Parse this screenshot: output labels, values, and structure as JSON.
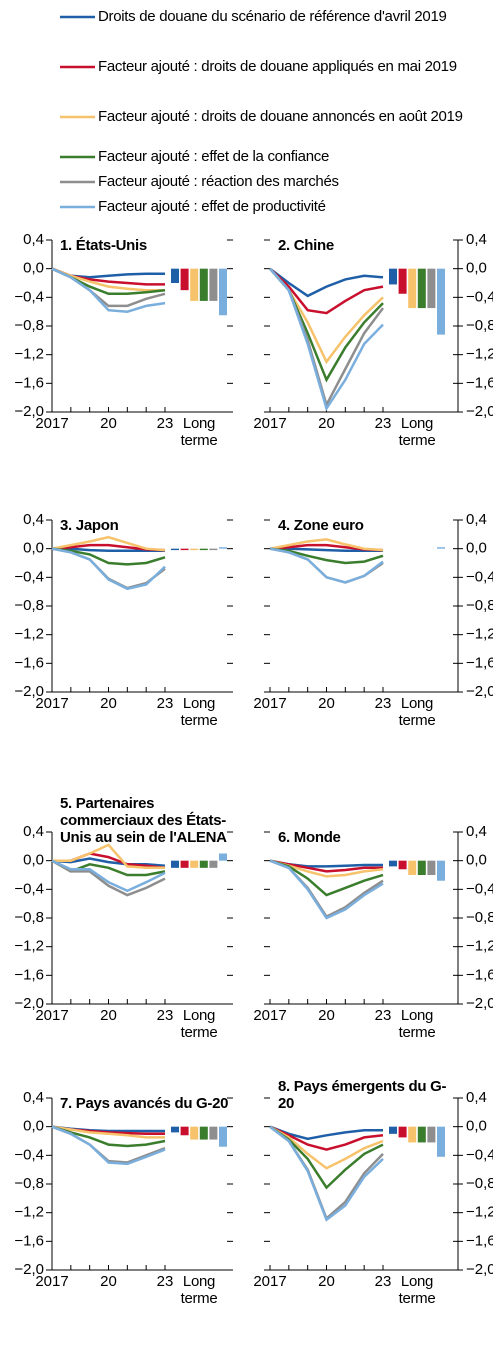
{
  "legend": [
    {
      "name": "Droits de douane du scénario de référence d'avril 2019",
      "color": "#1f5fa8"
    },
    {
      "name": "Facteur ajouté : droits de douane appliqués en mai 2019",
      "color": "#c8102e"
    },
    {
      "name": "Facteur ajouté : droits de douane annoncés en août 2019",
      "color": "#f6c26b"
    },
    {
      "name": "Facteur ajouté : effet de la confiance",
      "color": "#3a7d2c"
    },
    {
      "name": "Facteur ajouté : réaction des marchés",
      "color": "#8e8e8e"
    },
    {
      "name": "Facteur ajouté : effet de productivité",
      "color": "#7aaedc"
    }
  ],
  "chart_data": [
    {
      "type": "line",
      "title": "1. États-Unis",
      "ytick_side": "left",
      "x": [
        2017,
        2018,
        2019,
        2020,
        2021,
        2022,
        2023
      ],
      "xticks": [
        {
          "value": 2017,
          "label": "2017"
        },
        {
          "value": 2020,
          "label": "20"
        },
        {
          "value": 2023,
          "label": "23"
        }
      ],
      "long_term_label": "Long terme",
      "ylim": [
        -2.0,
        0.4
      ],
      "yticks": [
        {
          "value": 0.4,
          "label": "0,4"
        },
        {
          "value": 0.0,
          "label": "0,0"
        },
        {
          "value": -0.4,
          "label": "−0,4"
        },
        {
          "value": -0.8,
          "label": "−0,8"
        },
        {
          "value": -1.2,
          "label": "−1,2"
        },
        {
          "value": -1.6,
          "label": "−1,6"
        },
        {
          "value": -2.0,
          "label": "−2,0"
        }
      ],
      "series": [
        {
          "values": [
            0,
            -0.1,
            -0.12,
            -0.1,
            -0.08,
            -0.07,
            -0.07
          ],
          "long_term": -0.2
        },
        {
          "values": [
            0,
            -0.1,
            -0.15,
            -0.18,
            -0.2,
            -0.22,
            -0.22
          ],
          "long_term": -0.3
        },
        {
          "values": [
            0,
            -0.1,
            -0.18,
            -0.25,
            -0.28,
            -0.3,
            -0.3
          ],
          "long_term": -0.45
        },
        {
          "values": [
            0,
            -0.12,
            -0.25,
            -0.35,
            -0.35,
            -0.33,
            -0.3
          ],
          "long_term": -0.45
        },
        {
          "values": [
            0,
            -0.12,
            -0.3,
            -0.52,
            -0.52,
            -0.42,
            -0.35
          ],
          "long_term": -0.45
        },
        {
          "values": [
            0,
            -0.12,
            -0.3,
            -0.58,
            -0.6,
            -0.52,
            -0.48
          ],
          "long_term": -0.65
        }
      ]
    },
    {
      "type": "line",
      "title": "2. Chine",
      "ytick_side": "right",
      "x": [
        2017,
        2018,
        2019,
        2020,
        2021,
        2022,
        2023
      ],
      "xticks": [
        {
          "value": 2017,
          "label": "2017"
        },
        {
          "value": 2020,
          "label": "20"
        },
        {
          "value": 2023,
          "label": "23"
        }
      ],
      "long_term_label": "Long terme",
      "ylim": [
        -2.0,
        0.4
      ],
      "yticks": [
        {
          "value": 0.4,
          "label": "0,4"
        },
        {
          "value": 0.0,
          "label": "0,0"
        },
        {
          "value": -0.4,
          "label": "−0,4"
        },
        {
          "value": -0.8,
          "label": "−0,8"
        },
        {
          "value": -1.2,
          "label": "−1,2"
        },
        {
          "value": -1.6,
          "label": "−1,6"
        },
        {
          "value": -2.0,
          "label": "−2,0"
        }
      ],
      "series": [
        {
          "values": [
            0,
            -0.2,
            -0.38,
            -0.25,
            -0.15,
            -0.1,
            -0.12
          ],
          "long_term": -0.22
        },
        {
          "values": [
            0,
            -0.25,
            -0.58,
            -0.62,
            -0.45,
            -0.3,
            -0.25
          ],
          "long_term": -0.35
        },
        {
          "values": [
            0,
            -0.3,
            -0.75,
            -1.3,
            -0.95,
            -0.65,
            -0.4
          ],
          "long_term": -0.55
        },
        {
          "values": [
            0,
            -0.3,
            -0.9,
            -1.55,
            -1.1,
            -0.75,
            -0.48
          ],
          "long_term": -0.55
        },
        {
          "values": [
            0,
            -0.3,
            -1.0,
            -1.9,
            -1.4,
            -0.9,
            -0.55
          ],
          "long_term": -0.55
        },
        {
          "values": [
            0,
            -0.3,
            -1.05,
            -1.95,
            -1.55,
            -1.05,
            -0.78
          ],
          "long_term": -0.92
        }
      ]
    },
    {
      "type": "line",
      "title": "3. Japon",
      "ytick_side": "left",
      "x": [
        2017,
        2018,
        2019,
        2020,
        2021,
        2022,
        2023
      ],
      "xticks": [
        {
          "value": 2017,
          "label": "2017"
        },
        {
          "value": 2020,
          "label": "20"
        },
        {
          "value": 2023,
          "label": "23"
        }
      ],
      "long_term_label": "Long terme",
      "ylim": [
        -2.0,
        0.4
      ],
      "yticks": [
        {
          "value": 0.4,
          "label": "0,4"
        },
        {
          "value": 0.0,
          "label": "0,0"
        },
        {
          "value": -0.4,
          "label": "−0,4"
        },
        {
          "value": -0.8,
          "label": "−0,8"
        },
        {
          "value": -1.2,
          "label": "−1,2"
        },
        {
          "value": -1.6,
          "label": "−1,6"
        },
        {
          "value": -2.0,
          "label": "−2,0"
        }
      ],
      "series": [
        {
          "values": [
            0,
            0,
            -0.02,
            -0.03,
            -0.03,
            -0.03,
            -0.03
          ],
          "long_term": -0.02
        },
        {
          "values": [
            0,
            0.02,
            0.05,
            0.05,
            0.02,
            -0.01,
            -0.02
          ],
          "long_term": -0.02
        },
        {
          "values": [
            0,
            0.05,
            0.1,
            0.16,
            0.08,
            0,
            -0.02
          ],
          "long_term": -0.02
        },
        {
          "values": [
            0,
            -0.03,
            -0.08,
            -0.2,
            -0.22,
            -0.2,
            -0.12
          ],
          "long_term": -0.02
        },
        {
          "values": [
            0,
            -0.05,
            -0.15,
            -0.42,
            -0.55,
            -0.48,
            -0.28
          ],
          "long_term": -0.02
        },
        {
          "values": [
            0,
            -0.05,
            -0.15,
            -0.43,
            -0.56,
            -0.5,
            -0.25
          ],
          "long_term": 0.02
        }
      ]
    },
    {
      "type": "line",
      "title": "4. Zone euro",
      "ytick_side": "right",
      "x": [
        2017,
        2018,
        2019,
        2020,
        2021,
        2022,
        2023
      ],
      "xticks": [
        {
          "value": 2017,
          "label": "2017"
        },
        {
          "value": 2020,
          "label": "20"
        },
        {
          "value": 2023,
          "label": "23"
        }
      ],
      "long_term_label": "Long terme",
      "ylim": [
        -2.0,
        0.4
      ],
      "yticks": [
        {
          "value": 0.4,
          "label": "0,4"
        },
        {
          "value": 0.0,
          "label": "0,0"
        },
        {
          "value": -0.4,
          "label": "−0,4"
        },
        {
          "value": -0.8,
          "label": "−0,8"
        },
        {
          "value": -1.2,
          "label": "−1,2"
        },
        {
          "value": -1.6,
          "label": "−1,6"
        },
        {
          "value": -2.0,
          "label": "−2,0"
        }
      ],
      "series": [
        {
          "values": [
            0,
            0,
            -0.01,
            -0.02,
            -0.03,
            -0.03,
            -0.03
          ],
          "long_term": 0
        },
        {
          "values": [
            0,
            0.02,
            0.05,
            0.05,
            0.02,
            -0.01,
            -0.02
          ],
          "long_term": 0
        },
        {
          "values": [
            0,
            0.05,
            0.1,
            0.13,
            0.06,
            0,
            -0.02
          ],
          "long_term": 0
        },
        {
          "values": [
            0,
            -0.03,
            -0.1,
            -0.16,
            -0.2,
            -0.18,
            -0.1
          ],
          "long_term": 0
        },
        {
          "values": [
            0,
            -0.05,
            -0.15,
            -0.4,
            -0.47,
            -0.38,
            -0.2
          ],
          "long_term": 0
        },
        {
          "values": [
            0,
            -0.05,
            -0.15,
            -0.4,
            -0.47,
            -0.38,
            -0.18
          ],
          "long_term": 0.02
        }
      ]
    },
    {
      "type": "line",
      "title": "5. Partenaires commerciaux des États-Unis au sein de l'ALENA",
      "ytick_side": "left",
      "x": [
        2017,
        2018,
        2019,
        2020,
        2021,
        2022,
        2023
      ],
      "xticks": [
        {
          "value": 2017,
          "label": "2017"
        },
        {
          "value": 2020,
          "label": "20"
        },
        {
          "value": 2023,
          "label": "23"
        }
      ],
      "long_term_label": "Long terme",
      "ylim": [
        -2.0,
        0.4
      ],
      "yticks": [
        {
          "value": 0.4,
          "label": "0,4"
        },
        {
          "value": 0.0,
          "label": "0,0"
        },
        {
          "value": -0.4,
          "label": "−0,4"
        },
        {
          "value": -0.8,
          "label": "−0,8"
        },
        {
          "value": -1.2,
          "label": "−1,2"
        },
        {
          "value": -1.6,
          "label": "−1,6"
        },
        {
          "value": -2.0,
          "label": "−2,0"
        }
      ],
      "series": [
        {
          "values": [
            0,
            -0.02,
            0.03,
            -0.02,
            -0.05,
            -0.05,
            -0.07
          ],
          "long_term": -0.1
        },
        {
          "values": [
            0,
            0,
            0.1,
            0.05,
            -0.05,
            -0.07,
            -0.1
          ],
          "long_term": -0.1
        },
        {
          "values": [
            0,
            0,
            0.1,
            0.22,
            -0.08,
            -0.1,
            -0.1
          ],
          "long_term": -0.1
        },
        {
          "values": [
            0,
            -0.15,
            -0.05,
            -0.1,
            -0.2,
            -0.2,
            -0.15
          ],
          "long_term": -0.1
        },
        {
          "values": [
            0,
            -0.15,
            -0.15,
            -0.35,
            -0.48,
            -0.38,
            -0.25
          ],
          "long_term": -0.1
        },
        {
          "values": [
            0,
            -0.12,
            -0.12,
            -0.3,
            -0.42,
            -0.3,
            -0.17
          ],
          "long_term": 0.1
        }
      ]
    },
    {
      "type": "line",
      "title": "6. Monde",
      "ytick_side": "right",
      "x": [
        2017,
        2018,
        2019,
        2020,
        2021,
        2022,
        2023
      ],
      "xticks": [
        {
          "value": 2017,
          "label": "2017"
        },
        {
          "value": 2020,
          "label": "20"
        },
        {
          "value": 2023,
          "label": "23"
        }
      ],
      "long_term_label": "Long terme",
      "ylim": [
        -2.0,
        0.4
      ],
      "yticks": [
        {
          "value": 0.4,
          "label": "0,4"
        },
        {
          "value": 0.0,
          "label": "0,0"
        },
        {
          "value": -0.4,
          "label": "−0,4"
        },
        {
          "value": -0.8,
          "label": "−0,8"
        },
        {
          "value": -1.2,
          "label": "−1,2"
        },
        {
          "value": -1.6,
          "label": "−1,6"
        },
        {
          "value": -2.0,
          "label": "−2,0"
        }
      ],
      "series": [
        {
          "values": [
            0,
            -0.05,
            -0.08,
            -0.08,
            -0.07,
            -0.06,
            -0.06
          ],
          "long_term": -0.08
        },
        {
          "values": [
            0,
            -0.05,
            -0.1,
            -0.15,
            -0.13,
            -0.1,
            -0.1
          ],
          "long_term": -0.12
        },
        {
          "values": [
            0,
            -0.07,
            -0.15,
            -0.22,
            -0.2,
            -0.15,
            -0.12
          ],
          "long_term": -0.2
        },
        {
          "values": [
            0,
            -0.08,
            -0.25,
            -0.48,
            -0.38,
            -0.28,
            -0.2
          ],
          "long_term": -0.2
        },
        {
          "values": [
            0,
            -0.1,
            -0.38,
            -0.78,
            -0.65,
            -0.45,
            -0.28
          ],
          "long_term": -0.2
        },
        {
          "values": [
            0,
            -0.1,
            -0.4,
            -0.8,
            -0.68,
            -0.48,
            -0.32
          ],
          "long_term": -0.28
        }
      ]
    },
    {
      "type": "line",
      "title": "7. Pays avancés du G-20",
      "ytick_side": "left",
      "x": [
        2017,
        2018,
        2019,
        2020,
        2021,
        2022,
        2023
      ],
      "xticks": [
        {
          "value": 2017,
          "label": "2017"
        },
        {
          "value": 2020,
          "label": "20"
        },
        {
          "value": 2023,
          "label": "23"
        }
      ],
      "long_term_label": "Long terme",
      "ylim": [
        -2.0,
        0.4
      ],
      "yticks": [
        {
          "value": 0.4,
          "label": "0,4"
        },
        {
          "value": 0.0,
          "label": "0,0"
        },
        {
          "value": -0.4,
          "label": "−0,4"
        },
        {
          "value": -0.8,
          "label": "−0,8"
        },
        {
          "value": -1.2,
          "label": "−1,2"
        },
        {
          "value": -1.6,
          "label": "−1,6"
        },
        {
          "value": -2.0,
          "label": "−2,0"
        }
      ],
      "series": [
        {
          "values": [
            0,
            -0.03,
            -0.05,
            -0.06,
            -0.06,
            -0.06,
            -0.06
          ],
          "long_term": -0.08
        },
        {
          "values": [
            0,
            -0.04,
            -0.06,
            -0.08,
            -0.09,
            -0.1,
            -0.1
          ],
          "long_term": -0.12
        },
        {
          "values": [
            0,
            -0.04,
            -0.08,
            -0.1,
            -0.12,
            -0.15,
            -0.15
          ],
          "long_term": -0.18
        },
        {
          "values": [
            0,
            -0.08,
            -0.15,
            -0.25,
            -0.27,
            -0.25,
            -0.2
          ],
          "long_term": -0.18
        },
        {
          "values": [
            0,
            -0.1,
            -0.25,
            -0.48,
            -0.5,
            -0.4,
            -0.3
          ],
          "long_term": -0.18
        },
        {
          "values": [
            0,
            -0.1,
            -0.25,
            -0.5,
            -0.52,
            -0.42,
            -0.32
          ],
          "long_term": -0.28
        }
      ]
    },
    {
      "type": "line",
      "title": "8. Pays émergents du G-20",
      "ytick_side": "right",
      "x": [
        2017,
        2018,
        2019,
        2020,
        2021,
        2022,
        2023
      ],
      "xticks": [
        {
          "value": 2017,
          "label": "2017"
        },
        {
          "value": 2020,
          "label": "20"
        },
        {
          "value": 2023,
          "label": "23"
        }
      ],
      "long_term_label": "Long terme",
      "ylim": [
        -2.0,
        0.4
      ],
      "yticks": [
        {
          "value": 0.4,
          "label": "0,4"
        },
        {
          "value": 0.0,
          "label": "0,0"
        },
        {
          "value": -0.4,
          "label": "−0,4"
        },
        {
          "value": -0.8,
          "label": "−0,8"
        },
        {
          "value": -1.2,
          "label": "−1,2"
        },
        {
          "value": -1.6,
          "label": "−1,6"
        },
        {
          "value": -2.0,
          "label": "−2,0"
        }
      ],
      "series": [
        {
          "values": [
            0,
            -0.1,
            -0.17,
            -0.12,
            -0.08,
            -0.05,
            -0.05
          ],
          "long_term": -0.1
        },
        {
          "values": [
            0,
            -0.12,
            -0.25,
            -0.32,
            -0.25,
            -0.15,
            -0.12
          ],
          "long_term": -0.15
        },
        {
          "values": [
            0,
            -0.15,
            -0.38,
            -0.58,
            -0.45,
            -0.3,
            -0.2
          ],
          "long_term": -0.22
        },
        {
          "values": [
            0,
            -0.18,
            -0.45,
            -0.85,
            -0.6,
            -0.38,
            -0.25
          ],
          "long_term": -0.22
        },
        {
          "values": [
            0,
            -0.2,
            -0.6,
            -1.28,
            -1.05,
            -0.65,
            -0.38
          ],
          "long_term": -0.22
        },
        {
          "values": [
            0,
            -0.2,
            -0.62,
            -1.3,
            -1.1,
            -0.7,
            -0.45
          ],
          "long_term": -0.42
        }
      ]
    }
  ]
}
